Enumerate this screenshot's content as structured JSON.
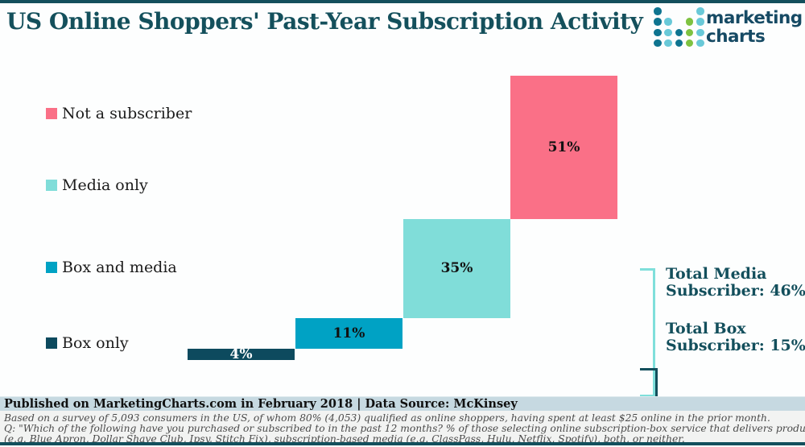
{
  "header": {
    "title": "US Online Shoppers' Past-Year Subscription Activity",
    "logo": {
      "line1": "marketing",
      "line2": "charts",
      "dot_colors": {
        "dark": "#0e7490",
        "cyan": "#69c9d8",
        "green": "#7ec241"
      },
      "dots": [
        [
          "dark",
          null,
          null,
          null,
          "cyan"
        ],
        [
          "dark",
          "cyan",
          null,
          "green",
          "cyan"
        ],
        [
          "dark",
          "cyan",
          "dark",
          "green",
          "cyan"
        ],
        [
          "dark",
          "cyan",
          "dark",
          "green",
          "cyan"
        ]
      ]
    }
  },
  "chart_data": {
    "type": "bar",
    "variant": "waterfall",
    "title": "US Online Shoppers' Past-Year Subscription Activity",
    "unit": "%",
    "categories": [
      "Box only",
      "Box and media",
      "Media only",
      "Not a subscriber"
    ],
    "values": [
      4,
      11,
      35,
      51
    ],
    "bar_labels": [
      "4%",
      "11%",
      "35%",
      "51%"
    ],
    "bar_colors": [
      "#0d4a5e",
      "#00a2c4",
      "#80ddd9",
      "#fa7087"
    ],
    "bar_label_colors": [
      "#ffffff",
      "#111111",
      "#111111",
      "#111111"
    ],
    "legend_position": "left",
    "legend": [
      {
        "label": "Not a subscriber",
        "color": "#fa7087"
      },
      {
        "label": "Media only",
        "color": "#80ddd9"
      },
      {
        "label": "Box and media",
        "color": "#00a2c4"
      },
      {
        "label": "Box only",
        "color": "#0d4a5e"
      }
    ],
    "annotations": [
      {
        "label": "Total Media Subscriber: 46%",
        "value": 46,
        "covers": [
          "Box and media",
          "Media only"
        ]
      },
      {
        "label": "Total Box Subscriber: 15%",
        "value": 15,
        "covers": [
          "Box only",
          "Box and media"
        ]
      }
    ],
    "axes": "none",
    "grid": false
  },
  "totals": [
    {
      "line1": "Total Media",
      "line2": "Subscriber: 46%"
    },
    {
      "line1": "Total Box",
      "line2": "Subscriber: 15%"
    }
  ],
  "footer": {
    "published": "Published on MarketingCharts.com in February 2018 | Data Source: McKinsey",
    "notes": [
      "Based on a survey of 5,093 consumers in the US, of whom 80% (4,053) qualified as online shoppers, having spent at least $25 online in the prior month.",
      "Q: \"Which of the following have you purchased or subscribed to in the past 12 months? % of those selecting online subscription-box service that delivers products regularly",
      "(e.g. Blue Apron, Dollar Shave Club, Ipsy, Stitch Fix), subscription-based media (e.g. ClassPass, Hulu, Netflix, Spotify), both, or neither."
    ]
  }
}
